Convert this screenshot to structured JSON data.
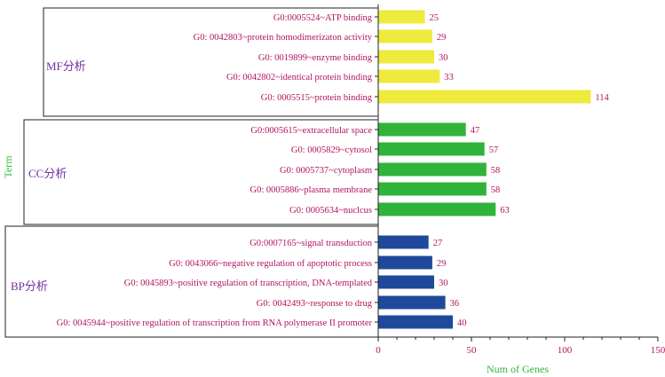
{
  "chart_data": {
    "type": "bar",
    "orientation": "horizontal",
    "xlabel": "Num of Genes",
    "ylabel": "Term",
    "xlim": [
      0,
      150
    ],
    "xticks": [
      0,
      50,
      100,
      150
    ],
    "groups": [
      {
        "name": "MF分析",
        "color": "#eeea3e",
        "terms": [
          {
            "label": "G0:0005524~ATP binding",
            "value": 25
          },
          {
            "label": "G0: 0042803~protein homodimerizaton activity",
            "value": 29
          },
          {
            "label": "G0: 0019899~enzyme binding",
            "value": 30
          },
          {
            "label": "G0: 0042802~identical protein binding",
            "value": 33
          },
          {
            "label": "G0: 0005515~protein binding",
            "value": 114
          }
        ]
      },
      {
        "name": "CC分析",
        "color": "#30b33a",
        "terms": [
          {
            "label": "G0:0005615~extracellular space",
            "value": 47
          },
          {
            "label": "G0: 0005829~cytosol",
            "value": 57
          },
          {
            "label": "G0: 0005737~cytoplasm",
            "value": 58
          },
          {
            "label": "G0: 0005886~plasma membrane",
            "value": 58
          },
          {
            "label": "G0: 0005634~nuclcus",
            "value": 63
          }
        ]
      },
      {
        "name": "BP分析",
        "color": "#1f4a9b",
        "terms": [
          {
            "label": "G0:0007165~signal transduction",
            "value": 27
          },
          {
            "label": "G0: 0043066~negative regulation of apoptotic process",
            "value": 29
          },
          {
            "label": "G0: 0045893~positive regulation of transcription, DNA-templated",
            "value": 30
          },
          {
            "label": "G0: 0042493~response to drug",
            "value": 36
          },
          {
            "label": "G0: 0045944~positive regulation of transcription from RNA polymerase II promoter",
            "value": 40
          }
        ]
      }
    ]
  }
}
